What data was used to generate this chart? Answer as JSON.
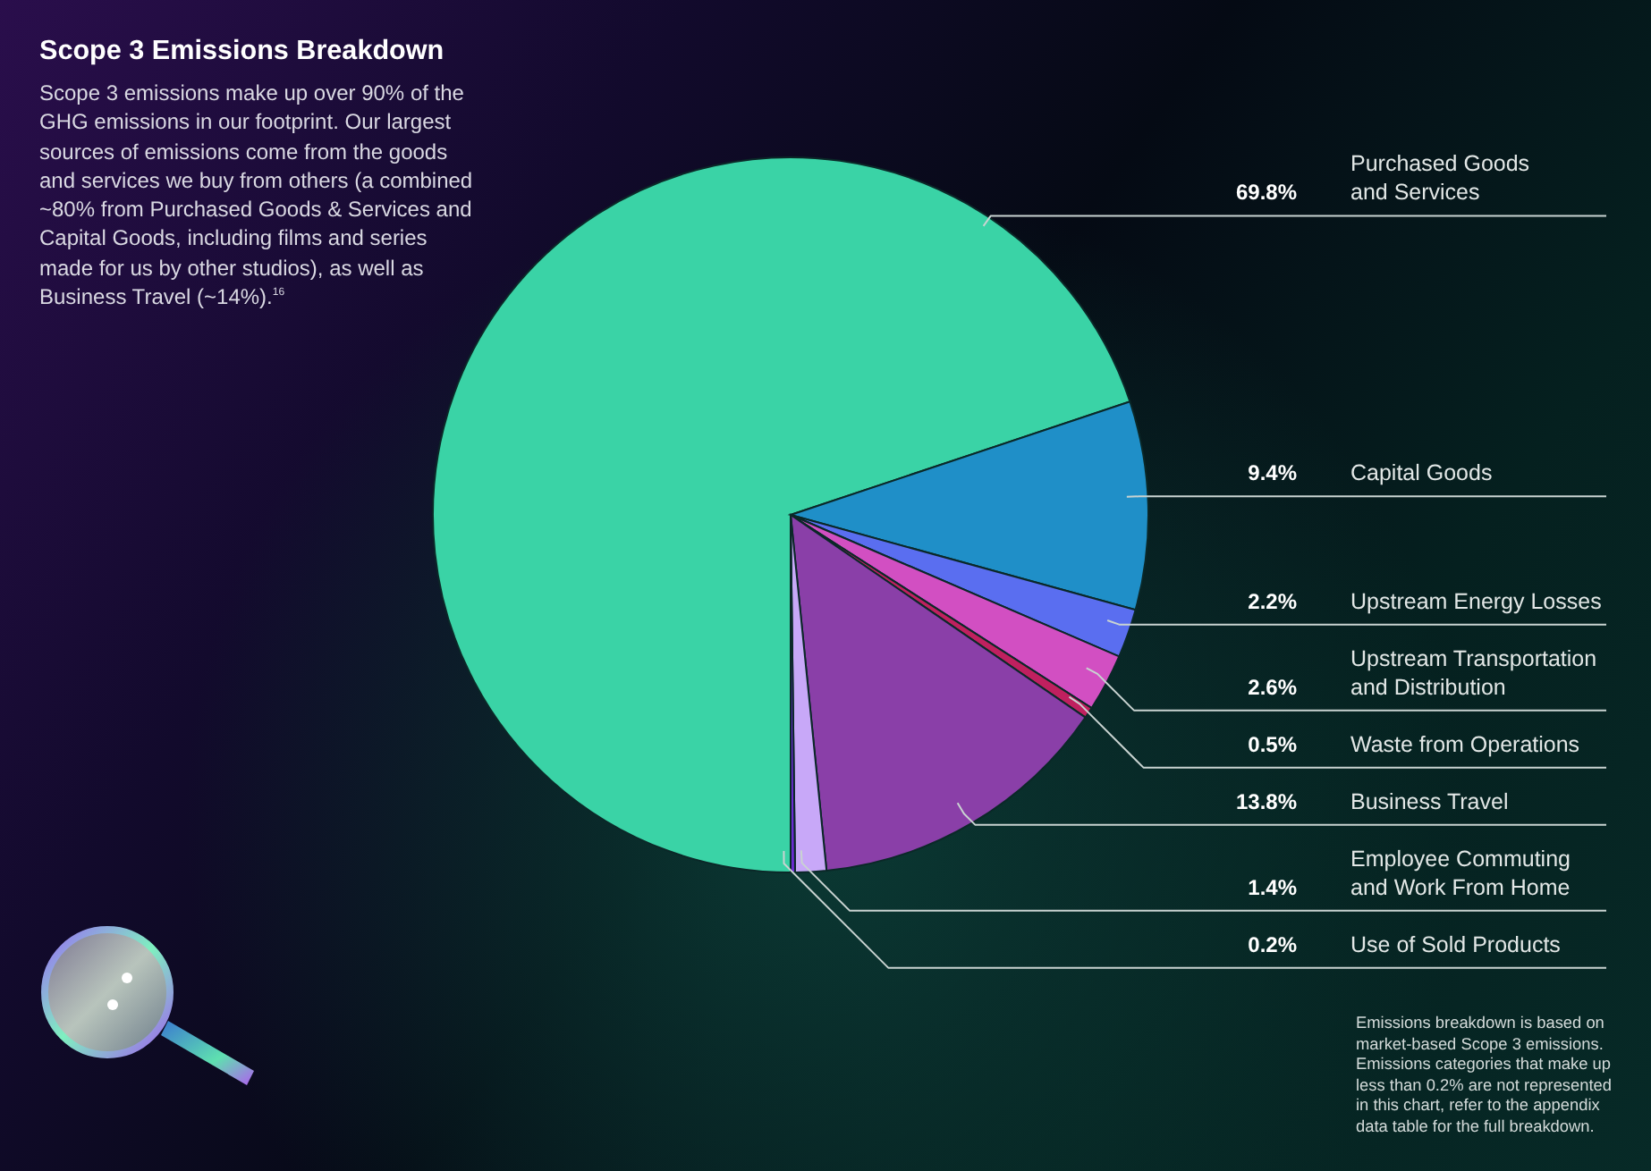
{
  "chart_data": {
    "type": "pie",
    "title": "Scope 3 Emissions Breakdown",
    "subtitle": "Scope 3 emissions make up over 90% of the GHG emissions in our footprint. Our largest sources of emissions come from the goods and services we buy from others (a combined ~80% from Purchased Goods & Services and Capital Goods, including films and series made for us by other studios), as well as Business Travel (~14%).$^{16}$",
    "categories": [
      "Purchased Goods and Services",
      "Capital Goods",
      "Upstream Energy Losses",
      "Upstream Transportation and Distribution",
      "Waste from Operations",
      "Business Travel",
      "Employee Commuting and Work From Home",
      "Use of Sold Products"
    ],
    "values": [
      69.8,
      9.4,
      2.2,
      2.6,
      0.5,
      13.8,
      1.4,
      0.2
    ],
    "value_labels": [
      "69.8%",
      "9.4%",
      "2.2%",
      "2.6%",
      "0.5%",
      "13.8%",
      "1.4%",
      "0.2%"
    ],
    "colors": [
      "#3ad3a6",
      "#1f8fc8",
      "#5a6ef0",
      "#d24fc2",
      "#c0205f",
      "#8a3fa8",
      "#c8a8f8",
      "#6a2ad0"
    ],
    "annotations": [
      "Emissions breakdown is based on market-based Scope 3 emissions. Emissions categories that make up less than 0.2% are not represented in this chart, refer to the appendix data table for the full breakdown."
    ]
  }
}
